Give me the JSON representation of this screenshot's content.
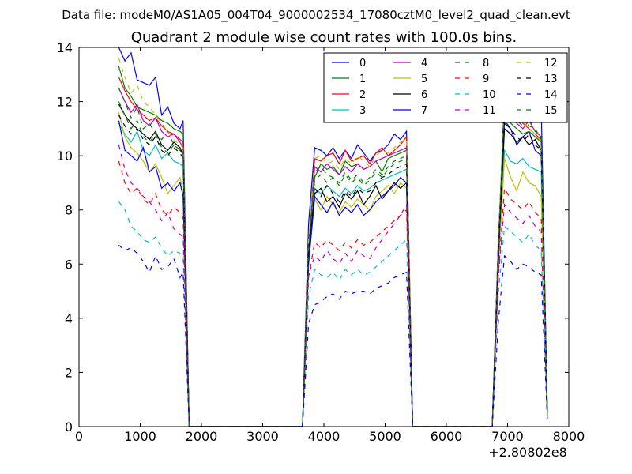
{
  "chart_data": {
    "type": "line",
    "suptitle": "Data file: modeM0/AS1A05_004T04_9000002534_17080cztM0_level2_quad_clean.evt",
    "title": "Quadrant 2 module wise count rates with 100.0s bins.",
    "xlabel": "",
    "ylabel": "",
    "x_offset_label": "+2.80802e8",
    "xlim": [
      0,
      8000
    ],
    "ylim": [
      0,
      14
    ],
    "x_ticks": [
      0,
      1000,
      2000,
      3000,
      4000,
      5000,
      6000,
      7000,
      8000
    ],
    "x_tick_labels": [
      "0",
      "1000",
      "2000",
      "3000",
      "4000",
      "5000",
      "6000",
      "7000",
      "8000"
    ],
    "y_ticks": [
      0,
      2,
      4,
      6,
      8,
      10,
      12,
      14
    ],
    "y_tick_labels": [
      "0",
      "2",
      "4",
      "6",
      "8",
      "10",
      "12",
      "14"
    ],
    "grid": false,
    "legend_position": "top-right",
    "legend_columns": 4,
    "x": [
      650,
      750,
      850,
      950,
      1050,
      1150,
      1250,
      1350,
      1450,
      1550,
      1650,
      1700,
      1800,
      1900,
      3650,
      3750,
      3850,
      3950,
      4050,
      4150,
      4250,
      4350,
      4450,
      4550,
      4650,
      4750,
      4850,
      4950,
      5050,
      5150,
      5250,
      5350,
      5450,
      5550,
      6750,
      6850,
      6950,
      7050,
      7150,
      7250,
      7350,
      7450,
      7550,
      7650
    ],
    "series": [
      {
        "name": "0",
        "color": "#0000ff",
        "dash": "solid",
        "values": [
          14.0,
          13.5,
          13.8,
          12.8,
          12.7,
          12.6,
          12.9,
          11.5,
          11.8,
          11.2,
          11.0,
          11.3,
          0,
          0,
          0,
          7.5,
          10.3,
          10.2,
          10.0,
          10.3,
          9.9,
          10.2,
          9.9,
          10.4,
          10.1,
          9.8,
          10.1,
          10.2,
          10.4,
          10.8,
          10.6,
          10.9,
          0,
          0,
          0,
          7.0,
          11.2,
          11.0,
          10.4,
          10.7,
          10.9,
          10.2,
          10.0,
          0.5
        ]
      },
      {
        "name": "1",
        "color": "#008000",
        "dash": "solid",
        "values": [
          13.3,
          12.5,
          12.2,
          11.8,
          11.7,
          11.6,
          11.5,
          11.3,
          11.2,
          11.0,
          10.9,
          10.8,
          0,
          0,
          0,
          6.7,
          9.2,
          9.7,
          9.5,
          9.6,
          9.3,
          9.8,
          9.6,
          9.7,
          9.5,
          9.6,
          9.8,
          9.4,
          9.9,
          10.0,
          10.1,
          10.2,
          0,
          0,
          0,
          6.5,
          11.5,
          11.2,
          11.0,
          10.8,
          10.9,
          10.7,
          10.5,
          0.4
        ]
      },
      {
        "name": "2",
        "color": "#ff0000",
        "dash": "solid",
        "values": [
          12.9,
          12.4,
          12.0,
          11.7,
          11.5,
          11.3,
          11.4,
          11.1,
          10.9,
          10.8,
          10.6,
          10.5,
          0,
          0,
          0,
          6.6,
          9.9,
          9.8,
          10.0,
          10.1,
          9.7,
          10.2,
          9.8,
          9.9,
          10.0,
          9.7,
          10.1,
          10.3,
          10.0,
          10.2,
          10.4,
          10.7,
          0,
          0,
          0,
          6.8,
          12.0,
          11.7,
          11.4,
          11.2,
          11.0,
          10.8,
          10.6,
          0.4
        ]
      },
      {
        "name": "3",
        "color": "#00bfbf",
        "dash": "solid",
        "values": [
          11.2,
          10.8,
          10.5,
          10.9,
          10.2,
          10.0,
          10.4,
          9.9,
          10.1,
          9.8,
          9.7,
          9.6,
          0,
          0,
          0,
          6.2,
          8.8,
          8.6,
          8.9,
          8.7,
          8.5,
          8.8,
          8.6,
          8.9,
          8.7,
          8.8,
          9.0,
          9.1,
          9.2,
          9.3,
          9.4,
          9.5,
          0,
          0,
          0,
          6.2,
          10.2,
          9.8,
          9.7,
          9.9,
          9.6,
          9.5,
          9.4,
          0.3
        ]
      },
      {
        "name": "4",
        "color": "#bf00bf",
        "dash": "solid",
        "values": [
          12.5,
          12.0,
          11.6,
          11.9,
          11.3,
          11.1,
          11.4,
          10.9,
          10.7,
          10.8,
          10.5,
          10.3,
          0,
          0,
          0,
          6.6,
          9.6,
          9.4,
          9.7,
          9.5,
          9.3,
          9.6,
          9.4,
          9.7,
          9.5,
          9.6,
          9.8,
          9.9,
          10.0,
          10.1,
          10.2,
          10.3,
          0,
          0,
          0,
          6.6,
          11.8,
          11.4,
          11.2,
          11.0,
          11.3,
          10.9,
          10.7,
          0.4
        ]
      },
      {
        "name": "5",
        "color": "#bfbf00",
        "dash": "solid",
        "values": [
          11.6,
          10.7,
          10.3,
          10.1,
          9.8,
          9.4,
          9.7,
          9.2,
          8.6,
          8.9,
          9.2,
          8.6,
          0,
          0,
          0,
          6.0,
          8.4,
          8.0,
          8.5,
          8.2,
          7.9,
          8.3,
          8.1,
          8.4,
          8.2,
          8.0,
          8.5,
          8.7,
          8.9,
          8.6,
          9.0,
          8.8,
          0,
          0,
          0,
          5.9,
          9.9,
          9.2,
          8.7,
          9.4,
          9.0,
          8.9,
          8.5,
          0.3
        ]
      },
      {
        "name": "6",
        "color": "#000000",
        "dash": "solid",
        "values": [
          11.9,
          11.5,
          11.2,
          11.0,
          10.8,
          10.6,
          10.9,
          10.4,
          10.2,
          10.5,
          10.3,
          10.0,
          0,
          0,
          0,
          6.4,
          8.6,
          8.8,
          8.3,
          8.5,
          8.1,
          8.6,
          8.4,
          8.7,
          8.2,
          8.5,
          8.9,
          8.4,
          8.7,
          9.0,
          8.8,
          9.0,
          0,
          0,
          0,
          6.3,
          11.0,
          10.8,
          10.5,
          10.7,
          10.4,
          10.6,
          10.2,
          0.4
        ]
      },
      {
        "name": "7",
        "color": "#0000ff",
        "dash": "solid",
        "values": [
          11.3,
          10.2,
          10.0,
          9.8,
          10.3,
          9.4,
          9.6,
          8.8,
          9.0,
          8.7,
          9.0,
          8.5,
          0,
          0,
          0,
          6.0,
          8.5,
          8.2,
          7.9,
          8.3,
          7.8,
          8.1,
          7.9,
          8.2,
          7.8,
          8.0,
          8.3,
          8.5,
          8.7,
          8.9,
          9.2,
          9.0,
          0,
          0,
          0,
          6.0,
          12.5,
          12.2,
          12.0,
          11.8,
          12.1,
          11.5,
          11.8,
          0.5
        ]
      },
      {
        "name": "8",
        "color": "#008000",
        "dash": "dash",
        "values": [
          12.5,
          12.0,
          11.4,
          11.8,
          11.0,
          11.2,
          10.8,
          10.6,
          10.9,
          10.4,
          10.2,
          10.1,
          0,
          0,
          0,
          6.8,
          9.4,
          9.6,
          9.3,
          9.2,
          9.0,
          9.4,
          9.1,
          9.3,
          9.0,
          9.2,
          9.5,
          9.3,
          9.6,
          9.8,
          9.9,
          10.0,
          0,
          0,
          0,
          6.7,
          12.3,
          12.0,
          11.6,
          11.4,
          11.1,
          11.0,
          10.6,
          0.4
        ]
      },
      {
        "name": "9",
        "color": "#ff0000",
        "dash": "dash",
        "values": [
          9.8,
          9.0,
          8.6,
          8.8,
          8.4,
          8.2,
          8.6,
          8.0,
          7.8,
          8.1,
          7.9,
          7.7,
          0,
          0,
          0,
          5.5,
          6.8,
          6.6,
          6.9,
          6.7,
          6.5,
          6.8,
          6.6,
          6.9,
          6.7,
          6.8,
          7.0,
          7.2,
          7.4,
          7.6,
          7.8,
          8.0,
          0,
          0,
          0,
          5.6,
          8.8,
          8.4,
          8.2,
          8.0,
          8.3,
          7.9,
          7.7,
          0.3
        ]
      },
      {
        "name": "10",
        "color": "#00bfbf",
        "dash": "dash",
        "values": [
          8.3,
          8.0,
          7.4,
          7.2,
          6.9,
          6.8,
          7.0,
          6.6,
          6.3,
          6.5,
          6.4,
          6.2,
          0,
          0,
          0,
          4.8,
          5.8,
          5.6,
          5.5,
          5.7,
          5.4,
          5.8,
          5.6,
          5.8,
          5.6,
          5.7,
          5.9,
          6.1,
          6.3,
          6.5,
          6.7,
          6.9,
          0,
          0,
          0,
          4.9,
          7.4,
          7.2,
          7.0,
          6.8,
          7.1,
          6.7,
          6.5,
          0.3
        ]
      },
      {
        "name": "11",
        "color": "#bf00bf",
        "dash": "dash",
        "values": [
          10.4,
          9.5,
          9.0,
          8.8,
          8.5,
          8.3,
          8.0,
          7.6,
          7.9,
          7.3,
          7.1,
          7.0,
          0,
          0,
          0,
          5.6,
          6.3,
          6.1,
          6.5,
          6.2,
          6.0,
          6.4,
          6.1,
          6.5,
          6.3,
          6.2,
          6.6,
          6.9,
          7.2,
          7.5,
          7.8,
          8.2,
          0,
          0,
          0,
          5.5,
          8.2,
          7.9,
          7.7,
          7.5,
          7.8,
          7.4,
          7.2,
          0.3
        ]
      },
      {
        "name": "12",
        "color": "#bfbf00",
        "dash": "dash",
        "values": [
          13.6,
          12.9,
          12.3,
          12.6,
          12.0,
          11.8,
          11.5,
          11.2,
          10.9,
          10.6,
          10.4,
          10.3,
          0,
          0,
          0,
          6.9,
          9.9,
          10.0,
          9.7,
          9.8,
          9.5,
          9.9,
          9.7,
          10.0,
          9.8,
          9.6,
          10.0,
          10.2,
          10.1,
          10.3,
          10.5,
          10.6,
          0,
          0,
          0,
          6.8,
          12.2,
          11.9,
          11.6,
          11.3,
          11.0,
          10.8,
          10.5,
          0.4
        ]
      },
      {
        "name": "13",
        "color": "#000000",
        "dash": "dash",
        "values": [
          11.5,
          11.1,
          10.8,
          11.0,
          10.6,
          10.4,
          10.7,
          10.2,
          10.0,
          10.3,
          10.1,
          9.9,
          0,
          0,
          0,
          6.4,
          8.8,
          8.5,
          8.9,
          8.6,
          8.3,
          8.7,
          8.5,
          8.8,
          8.6,
          8.7,
          9.0,
          9.2,
          9.3,
          9.5,
          9.6,
          9.7,
          0,
          0,
          0,
          6.4,
          11.3,
          11.0,
          10.7,
          10.5,
          10.8,
          10.4,
          10.2,
          0.4
        ]
      },
      {
        "name": "14",
        "color": "#0000ff",
        "dash": "dash",
        "values": [
          6.7,
          6.5,
          6.6,
          6.4,
          6.1,
          5.7,
          6.3,
          5.8,
          5.9,
          6.2,
          5.5,
          5.7,
          0,
          0,
          0,
          3.8,
          4.5,
          4.6,
          4.8,
          4.9,
          4.7,
          5.0,
          4.9,
          5.0,
          5.0,
          4.9,
          5.1,
          5.2,
          5.3,
          5.5,
          5.6,
          5.7,
          0,
          0,
          0,
          3.9,
          6.3,
          6.1,
          5.8,
          6.0,
          5.9,
          5.7,
          5.6,
          0.2
        ]
      },
      {
        "name": "15",
        "color": "#008000",
        "dash": "dash",
        "values": [
          12.0,
          11.5,
          11.0,
          11.3,
          10.7,
          10.5,
          10.8,
          10.3,
          10.1,
          10.4,
          10.2,
          10.0,
          0,
          0,
          0,
          6.5,
          9.1,
          9.3,
          9.0,
          9.2,
          8.9,
          9.3,
          9.0,
          9.2,
          8.9,
          9.1,
          9.4,
          9.2,
          9.5,
          9.7,
          9.8,
          9.9,
          0,
          0,
          0,
          6.5,
          11.9,
          11.6,
          11.3,
          11.1,
          11.4,
          10.9,
          10.7,
          0.4
        ]
      }
    ]
  }
}
